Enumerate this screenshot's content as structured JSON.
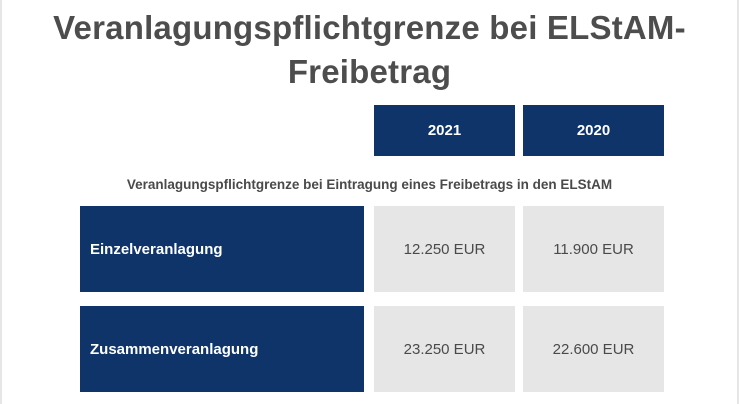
{
  "title_line1": "Veranlagungspflichtgrenze bei ELStAM-",
  "title_line2": "Freibetrag",
  "columns": [
    "2021",
    "2020"
  ],
  "subheading": "Veranlagungspflichtgrenze bei Eintragung eines Freibetrags in den ELStAM",
  "rows": [
    {
      "label": "Einzelveranlagung",
      "values": [
        "12.250 EUR",
        "11.900 EUR"
      ]
    },
    {
      "label": "Zusammenveranlagung",
      "values": [
        "23.250 EUR",
        "22.600 EUR"
      ]
    }
  ],
  "colors": {
    "header_bg": "#0e3469",
    "cell_bg": "#e6e6e6",
    "title_text": "#4d4d4d"
  }
}
